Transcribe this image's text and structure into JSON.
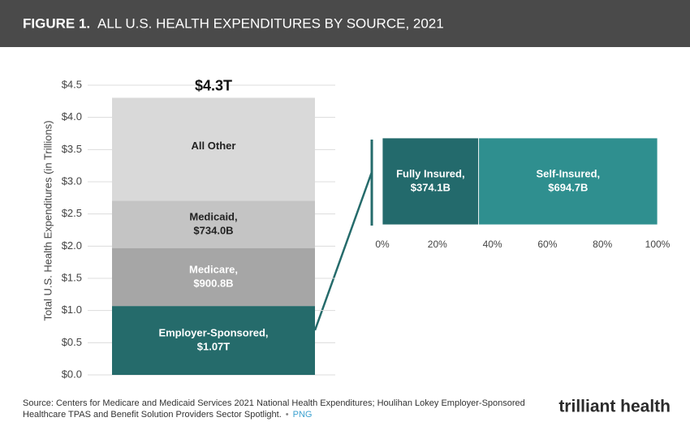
{
  "header": {
    "figure": "FIGURE 1.",
    "title": "ALL U.S. HEALTH EXPENDITURES BY SOURCE, 2021"
  },
  "chart_data": [
    {
      "type": "bar",
      "orientation": "vertical",
      "stacked": true,
      "y_label": "Total U.S. Health Expenditures (in Trillions)",
      "categories": [
        null
      ],
      "series": [
        {
          "name": "Employer-Sponsored,",
          "color": "#256b6b",
          "label_color": "#ffffff",
          "values": [
            1.07
          ],
          "value_labels": [
            "$1.07T"
          ]
        },
        {
          "name": "Medicare,",
          "color": "#a6a6a6",
          "label_color": "#ffffff",
          "values": [
            0.9008
          ],
          "value_labels": [
            "$900.8B"
          ]
        },
        {
          "name": "Medicaid,",
          "color": "#c4c4c4",
          "label_color": "#222222",
          "values": [
            0.734
          ],
          "value_labels": [
            "$734.0B"
          ]
        },
        {
          "name": "All Other",
          "color": "#d9d9d9",
          "label_color": "#222222",
          "values": [
            1.6
          ]
        }
      ],
      "total": {
        "value": 4.3,
        "label": "$4.3T"
      },
      "ylim": [
        0,
        4.5
      ],
      "yticks": [
        {
          "value": 0,
          "label": "$0.0"
        },
        {
          "value": 0.5,
          "label": "$0.5"
        },
        {
          "value": 1,
          "label": "$1.0"
        },
        {
          "value": 1.5,
          "label": "$1.5"
        },
        {
          "value": 2,
          "label": "$2.0"
        },
        {
          "value": 2.5,
          "label": "$2.5"
        },
        {
          "value": 3,
          "label": "$3.0"
        },
        {
          "value": 3.5,
          "label": "$3.5"
        },
        {
          "value": 4,
          "label": "$4.0"
        },
        {
          "value": 4.5,
          "label": "$4.5"
        }
      ],
      "grid": true
    },
    {
      "type": "bar",
      "orientation": "horizontal",
      "stacked": true,
      "categories": [
        null
      ],
      "series": [
        {
          "name": "Fully Insured,",
          "color": "#236a6c",
          "label_color": "#ffffff",
          "values": [
            35.0
          ],
          "amount_label": "$374.1B"
        },
        {
          "name": "Self-Insured,",
          "color": "#2f8f8f",
          "label_color": "#ffffff",
          "values": [
            65.0
          ],
          "amount_label": "$694.7B"
        }
      ],
      "xlim": [
        0,
        100
      ],
      "xticks": [
        {
          "value": 0,
          "label": "0%"
        },
        {
          "value": 20,
          "label": "20%"
        },
        {
          "value": 40,
          "label": "40%"
        },
        {
          "value": 60,
          "label": "60%"
        },
        {
          "value": 80,
          "label": "80%"
        },
        {
          "value": 100,
          "label": "100%"
        }
      ],
      "grid": false
    }
  ],
  "footer": {
    "source": [
      "Source: Centers for Medicare and Medicaid Services 2021 National Health Expenditures; Houlihan Lokey Employer-Sponsored",
      "Healthcare TPAS and Benefit Solution Providers Sector Spotlight."
    ],
    "separator": "•",
    "link": "PNG"
  },
  "logo": "trilliant health"
}
